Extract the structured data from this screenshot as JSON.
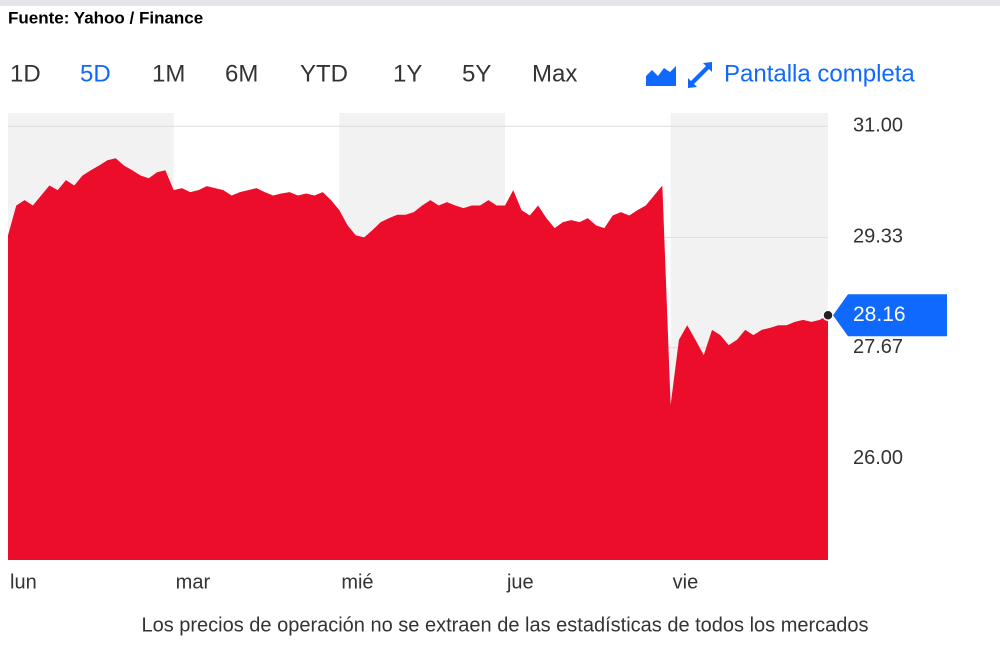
{
  "source": "Fuente: Yahoo / Finance",
  "ranges": [
    "1D",
    "5D",
    "1M",
    "6M",
    "YTD",
    "1Y",
    "5Y",
    "Max"
  ],
  "selected": "5D",
  "fullscreen": "Pantalla completa",
  "footnote": "Los precios de operación no se extraen de las estadísticas de todos los mercados",
  "chart_data": {
    "type": "area",
    "color": "#ec0d2b",
    "categories": [
      "lun",
      null,
      null,
      null,
      null,
      null,
      null,
      null,
      null,
      null,
      null,
      null,
      null,
      null,
      null,
      null,
      null,
      null,
      null,
      null,
      "mar",
      null,
      null,
      null,
      null,
      null,
      null,
      null,
      null,
      null,
      null,
      null,
      null,
      null,
      null,
      null,
      null,
      null,
      null,
      null,
      "mié",
      null,
      null,
      null,
      null,
      null,
      null,
      null,
      null,
      null,
      null,
      null,
      null,
      null,
      null,
      null,
      null,
      null,
      null,
      null,
      "jue",
      null,
      null,
      null,
      null,
      null,
      null,
      null,
      null,
      null,
      null,
      null,
      null,
      null,
      null,
      null,
      null,
      null,
      null,
      null,
      "vie",
      null,
      null,
      null,
      null,
      null,
      null,
      null,
      null,
      null,
      null,
      null,
      null,
      null,
      null,
      null,
      null,
      null,
      null,
      null
    ],
    "values": [
      29.36,
      29.81,
      29.89,
      29.81,
      29.96,
      30.11,
      30.04,
      30.19,
      30.11,
      30.26,
      30.34,
      30.41,
      30.49,
      30.52,
      30.41,
      30.34,
      30.26,
      30.22,
      30.31,
      30.34,
      30.04,
      30.07,
      30.01,
      30.04,
      30.1,
      30.07,
      30.04,
      29.96,
      30.01,
      30.04,
      30.07,
      30.01,
      29.96,
      29.99,
      30.01,
      29.96,
      29.99,
      29.96,
      30.01,
      29.89,
      29.74,
      29.51,
      29.36,
      29.33,
      29.44,
      29.56,
      29.62,
      29.67,
      29.67,
      29.71,
      29.81,
      29.89,
      29.81,
      29.86,
      29.81,
      29.77,
      29.81,
      29.81,
      29.89,
      29.81,
      29.81,
      30.04,
      29.74,
      29.66,
      29.81,
      29.62,
      29.47,
      29.56,
      29.59,
      29.56,
      29.62,
      29.51,
      29.47,
      29.66,
      29.71,
      29.66,
      29.74,
      29.81,
      29.96,
      30.11,
      26.81,
      27.79,
      28.01,
      27.79,
      27.56,
      27.94,
      27.86,
      27.71,
      27.79,
      27.94,
      27.86,
      27.94,
      27.97,
      28.01,
      28.01,
      28.06,
      28.09,
      28.06,
      28.09,
      28.16
    ],
    "last_price": 28.16,
    "ylim": [
      24.48,
      31.2
    ],
    "yticks": [
      {
        "value": 31,
        "label": "31.00"
      },
      29.33,
      27.67,
      {
        "value": 26,
        "label": "26.00"
      }
    ],
    "grid": true
  }
}
